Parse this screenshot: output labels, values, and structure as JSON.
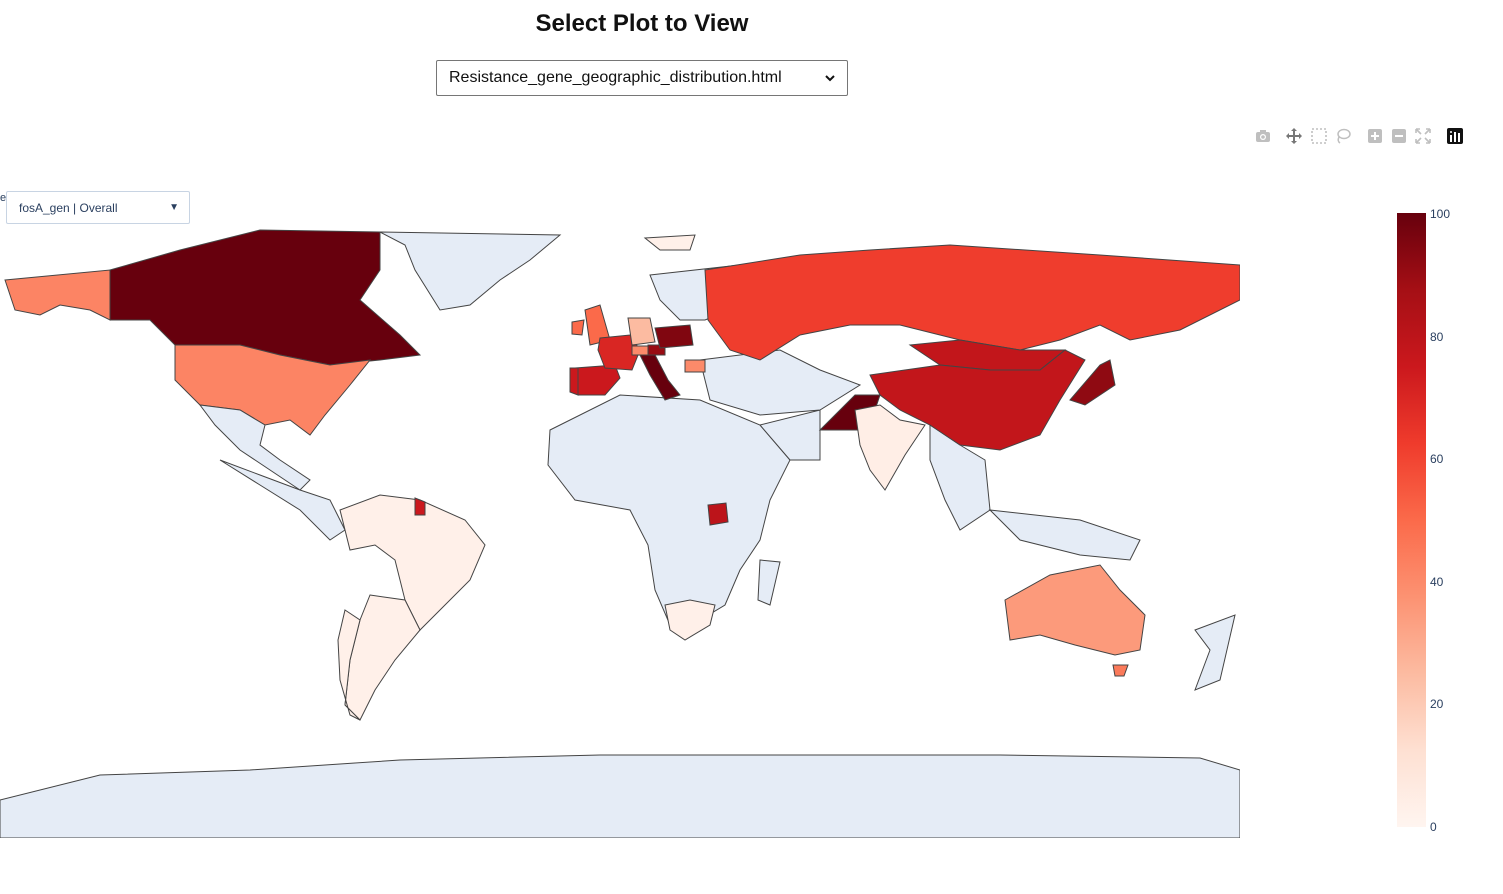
{
  "page": {
    "title": "Select Plot to View",
    "selected_plot": "Resistance_gene_geographic_distribution.html"
  },
  "map": {
    "gene_dropdown": "fosA_gen | Overall",
    "colorscale": "Reds",
    "colorbar": {
      "min": 0,
      "max": 100,
      "ticks": [
        "100",
        "80",
        "60",
        "40",
        "20",
        "0"
      ]
    },
    "land_color": "#e5ecf6",
    "border_color": "#444444"
  },
  "modebar": {
    "icons": [
      "camera-icon",
      "pan-icon",
      "box-select-icon",
      "lasso-select-icon",
      "zoom-in-icon",
      "zoom-out-icon",
      "reset-view-icon",
      "plotly-logo-icon"
    ]
  },
  "chart_data": {
    "type": "choropleth",
    "title": "",
    "scale": {
      "min": 0,
      "max": 100
    },
    "regions": [
      {
        "name": "Canada",
        "value": 100
      },
      {
        "name": "Greenland",
        "value": null
      },
      {
        "name": "United States",
        "value": 42
      },
      {
        "name": "Alaska",
        "value": 42
      },
      {
        "name": "Mexico",
        "value": null
      },
      {
        "name": "Brazil",
        "value": 3
      },
      {
        "name": "Argentina",
        "value": 3
      },
      {
        "name": "Chile",
        "value": 3
      },
      {
        "name": "French Guiana",
        "value": 75
      },
      {
        "name": "United Kingdom",
        "value": 50
      },
      {
        "name": "Ireland",
        "value": 50
      },
      {
        "name": "Spain",
        "value": 75
      },
      {
        "name": "Portugal",
        "value": 75
      },
      {
        "name": "France",
        "value": 70
      },
      {
        "name": "Germany",
        "value": 25
      },
      {
        "name": "Italy",
        "value": 100
      },
      {
        "name": "Switzerland",
        "value": 40
      },
      {
        "name": "Hungary",
        "value": 95
      },
      {
        "name": "Austria",
        "value": 90
      },
      {
        "name": "Bulgaria",
        "value": 40
      },
      {
        "name": "Russia",
        "value": 62
      },
      {
        "name": "China",
        "value": 78
      },
      {
        "name": "Mongolia",
        "value": 78
      },
      {
        "name": "Pakistan",
        "value": 100
      },
      {
        "name": "India",
        "value": 4
      },
      {
        "name": "Japan",
        "value": 92
      },
      {
        "name": "Uganda",
        "value": 80
      },
      {
        "name": "South Africa",
        "value": 3
      },
      {
        "name": "Australia",
        "value": 35
      },
      {
        "name": "Tasmania",
        "value": 45
      },
      {
        "name": "Svalbard",
        "value": 3
      }
    ]
  }
}
